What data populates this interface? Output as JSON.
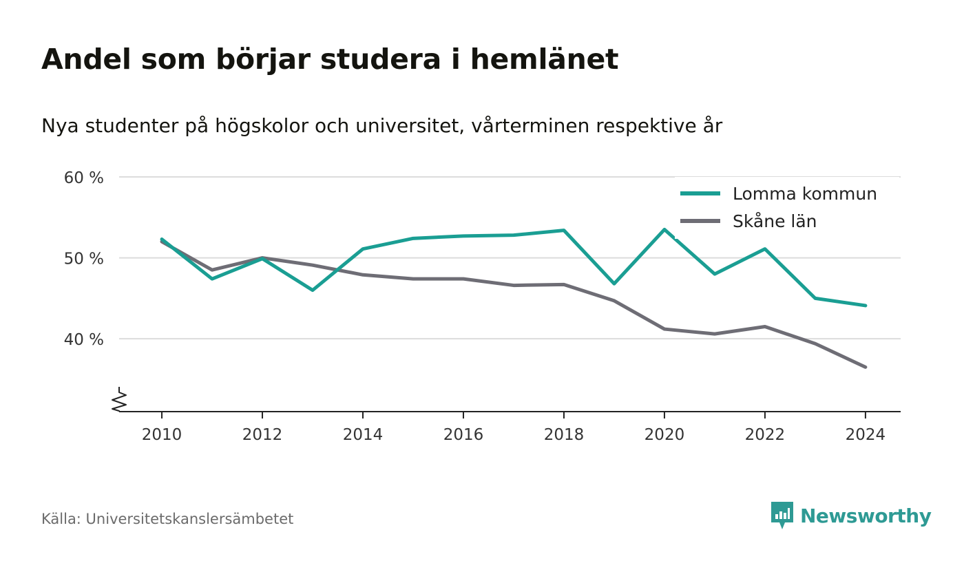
{
  "header": {
    "title": "Andel som börjar studera i hemlänet",
    "subtitle": "Nya studenter på högskolor och universitet, vårterminen respektive år"
  },
  "footer": {
    "source": "Källa: Universitetskanslersämbetet",
    "logo_text": "Newsworthy"
  },
  "colors": {
    "lomma": "#1a9e93",
    "skane": "#6e6d75",
    "grid": "#dcdcdc",
    "axis": "#222222",
    "text": "#333333",
    "logo": "#2e9a94"
  },
  "chart_data": {
    "type": "line",
    "title": "Andel som börjar studera i hemlänet",
    "subtitle": "Nya studenter på högskolor och universitet, vårterminen respektive år",
    "x": [
      2010,
      2011,
      2012,
      2013,
      2014,
      2015,
      2016,
      2017,
      2018,
      2019,
      2020,
      2021,
      2022,
      2023,
      2024
    ],
    "series": [
      {
        "name": "Lomma kommun",
        "color": "#1a9e93",
        "values": [
          52.3,
          47.4,
          49.9,
          46.0,
          51.1,
          52.4,
          52.7,
          52.8,
          53.4,
          46.8,
          53.5,
          48.0,
          51.1,
          45.0,
          44.1
        ]
      },
      {
        "name": "Skåne län",
        "color": "#6e6d75",
        "values": [
          52.0,
          48.5,
          50.0,
          49.1,
          47.9,
          47.4,
          47.4,
          46.6,
          46.7,
          44.7,
          41.2,
          40.6,
          41.5,
          39.4,
          36.5
        ]
      }
    ],
    "xticks": [
      2010,
      2012,
      2014,
      2016,
      2018,
      2020,
      2022,
      2024
    ],
    "xtick_labels": [
      "2010",
      "2012",
      "2014",
      "2016",
      "2018",
      "2020",
      "2022",
      "2024"
    ],
    "yticks": [
      40,
      50,
      60
    ],
    "ytick_labels": [
      "40 %",
      "50 %",
      "60 %"
    ],
    "xlim": [
      2009.15,
      2024.7
    ],
    "ylim": [
      31,
      60
    ],
    "y_axis_break": true,
    "grid": true,
    "legend_position": "top-right",
    "xlabel": "",
    "ylabel": ""
  }
}
